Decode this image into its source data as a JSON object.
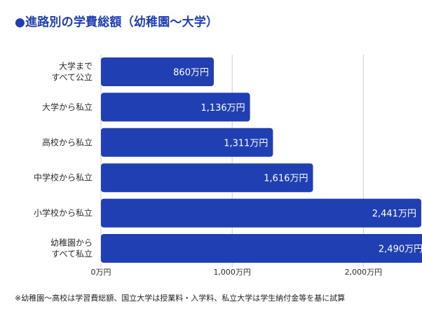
{
  "colors": {
    "accent": "#1f3fb3",
    "bar": "#1f3fb3",
    "bar_text": "#ffffff",
    "grid": "#cfcfcf"
  },
  "chart_data": {
    "type": "bar",
    "orientation": "horizontal",
    "title": "●進路別の学費総額（幼稚園〜大学）",
    "categories": [
      [
        "大学まで",
        "すべて公立"
      ],
      [
        "大学から私立"
      ],
      [
        "高校から私立"
      ],
      [
        "中学校から私立"
      ],
      [
        "小学校から私立"
      ],
      [
        "幼稚園から",
        "すべて私立"
      ]
    ],
    "values": [
      860,
      1136,
      1311,
      1616,
      2441,
      2490
    ],
    "value_labels": [
      "860万円",
      "1,136万円",
      "1,311万円",
      "1,616万円",
      "2,441万円",
      "2,490万円"
    ],
    "unit": "万円",
    "xlim": [
      0,
      2500
    ],
    "ticks": [
      0,
      1000,
      2000
    ],
    "tick_labels": [
      "0万円",
      "1,000万円",
      "2,000万円"
    ],
    "grid": true
  },
  "footnote": "※幼稚園〜高校は学習費総額、国立大学は授業料・入学料、私立大学は学生納付金等を基に試算"
}
